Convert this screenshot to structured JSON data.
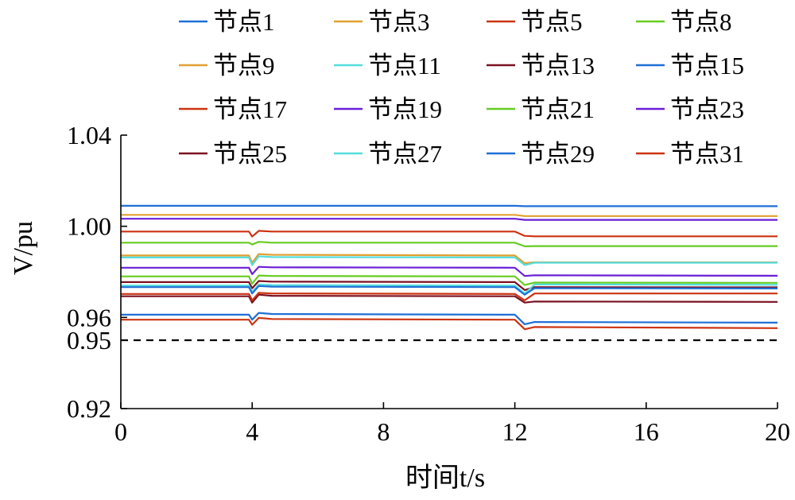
{
  "chart_data": {
    "type": "line",
    "xlabel": "时间t/s",
    "ylabel": "V/pu",
    "xlim": [
      0,
      20
    ],
    "ylim": [
      0.92,
      1.04
    ],
    "xticks": [
      "0",
      "4",
      "8",
      "12",
      "16",
      "20"
    ],
    "yticks": [
      "0.92",
      "0.95",
      "0.96",
      "1.00",
      "1.04"
    ],
    "grid": false,
    "legend_position": "top",
    "reference_line": {
      "y": 0.95,
      "style": "dashed",
      "color": "#000000"
    },
    "x": [
      0,
      3.9,
      4.0,
      4.2,
      4.6,
      12.0,
      12.3,
      12.6,
      20
    ],
    "series": [
      {
        "name": "节点1",
        "color": "#1f6fd6",
        "values": [
          1.009,
          1.009,
          1.009,
          1.009,
          1.009,
          1.009,
          1.0088,
          1.0088,
          1.0088
        ]
      },
      {
        "name": "节点3",
        "color": "#e0a030",
        "values": [
          1.005,
          1.005,
          1.005,
          1.005,
          1.005,
          1.005,
          1.0045,
          1.0045,
          1.0045
        ]
      },
      {
        "name": "节点5",
        "color": "#cc3311",
        "values": [
          0.9977,
          0.9977,
          0.9955,
          0.998,
          0.9977,
          0.9977,
          0.9958,
          0.9956,
          0.9956
        ]
      },
      {
        "name": "节点8",
        "color": "#66cc22",
        "values": [
          0.9928,
          0.9928,
          0.992,
          0.9932,
          0.9928,
          0.9928,
          0.9912,
          0.9913,
          0.9913
        ]
      },
      {
        "name": "节点9",
        "color": "#e0a030",
        "values": [
          0.9872,
          0.9872,
          0.984,
          0.9878,
          0.9875,
          0.9872,
          0.9838,
          0.9842,
          0.9842
        ]
      },
      {
        "name": "节点11",
        "color": "#55dddd",
        "values": [
          0.9863,
          0.9863,
          0.983,
          0.9868,
          0.9865,
          0.9863,
          0.983,
          0.984,
          0.984
        ]
      },
      {
        "name": "节点13",
        "color": "#7a1020",
        "values": [
          0.9693,
          0.9693,
          0.9665,
          0.97,
          0.9695,
          0.9693,
          0.9665,
          0.967,
          0.9668
        ]
      },
      {
        "name": "节点15",
        "color": "#1f6fd6",
        "values": [
          0.9612,
          0.9612,
          0.959,
          0.962,
          0.9615,
          0.9612,
          0.957,
          0.958,
          0.9577
        ]
      },
      {
        "name": "节点17",
        "color": "#cc3311",
        "values": [
          0.959,
          0.959,
          0.9568,
          0.9598,
          0.9593,
          0.959,
          0.9548,
          0.9558,
          0.9553
        ]
      },
      {
        "name": "节点19",
        "color": "#6a1fd6",
        "values": [
          0.9818,
          0.9818,
          0.979,
          0.9822,
          0.982,
          0.9818,
          0.9782,
          0.9785,
          0.9783
        ]
      },
      {
        "name": "节点21",
        "color": "#66cc22",
        "values": [
          0.978,
          0.978,
          0.9748,
          0.9784,
          0.9782,
          0.978,
          0.9742,
          0.9753,
          0.9752
        ]
      },
      {
        "name": "节点23",
        "color": "#6a1fd6",
        "values": [
          1.0033,
          1.0033,
          1.0033,
          1.0033,
          1.0033,
          1.0033,
          1.0028,
          1.0028,
          1.0028
        ]
      },
      {
        "name": "节点25",
        "color": "#7a1020",
        "values": [
          0.9755,
          0.9755,
          0.9728,
          0.976,
          0.9757,
          0.9755,
          0.972,
          0.9733,
          0.9732
        ]
      },
      {
        "name": "节点27",
        "color": "#55dddd",
        "values": [
          0.974,
          0.974,
          0.9712,
          0.9745,
          0.9742,
          0.974,
          0.9705,
          0.9745,
          0.9743
        ]
      },
      {
        "name": "节点29",
        "color": "#1f6fd6",
        "values": [
          0.9733,
          0.9733,
          0.9705,
          0.9738,
          0.9735,
          0.9733,
          0.97,
          0.9728,
          0.9727
        ]
      },
      {
        "name": "节点31",
        "color": "#cc3311",
        "values": [
          0.9703,
          0.9703,
          0.9675,
          0.9708,
          0.9705,
          0.9703,
          0.9675,
          0.9705,
          0.9705
        ]
      }
    ]
  }
}
